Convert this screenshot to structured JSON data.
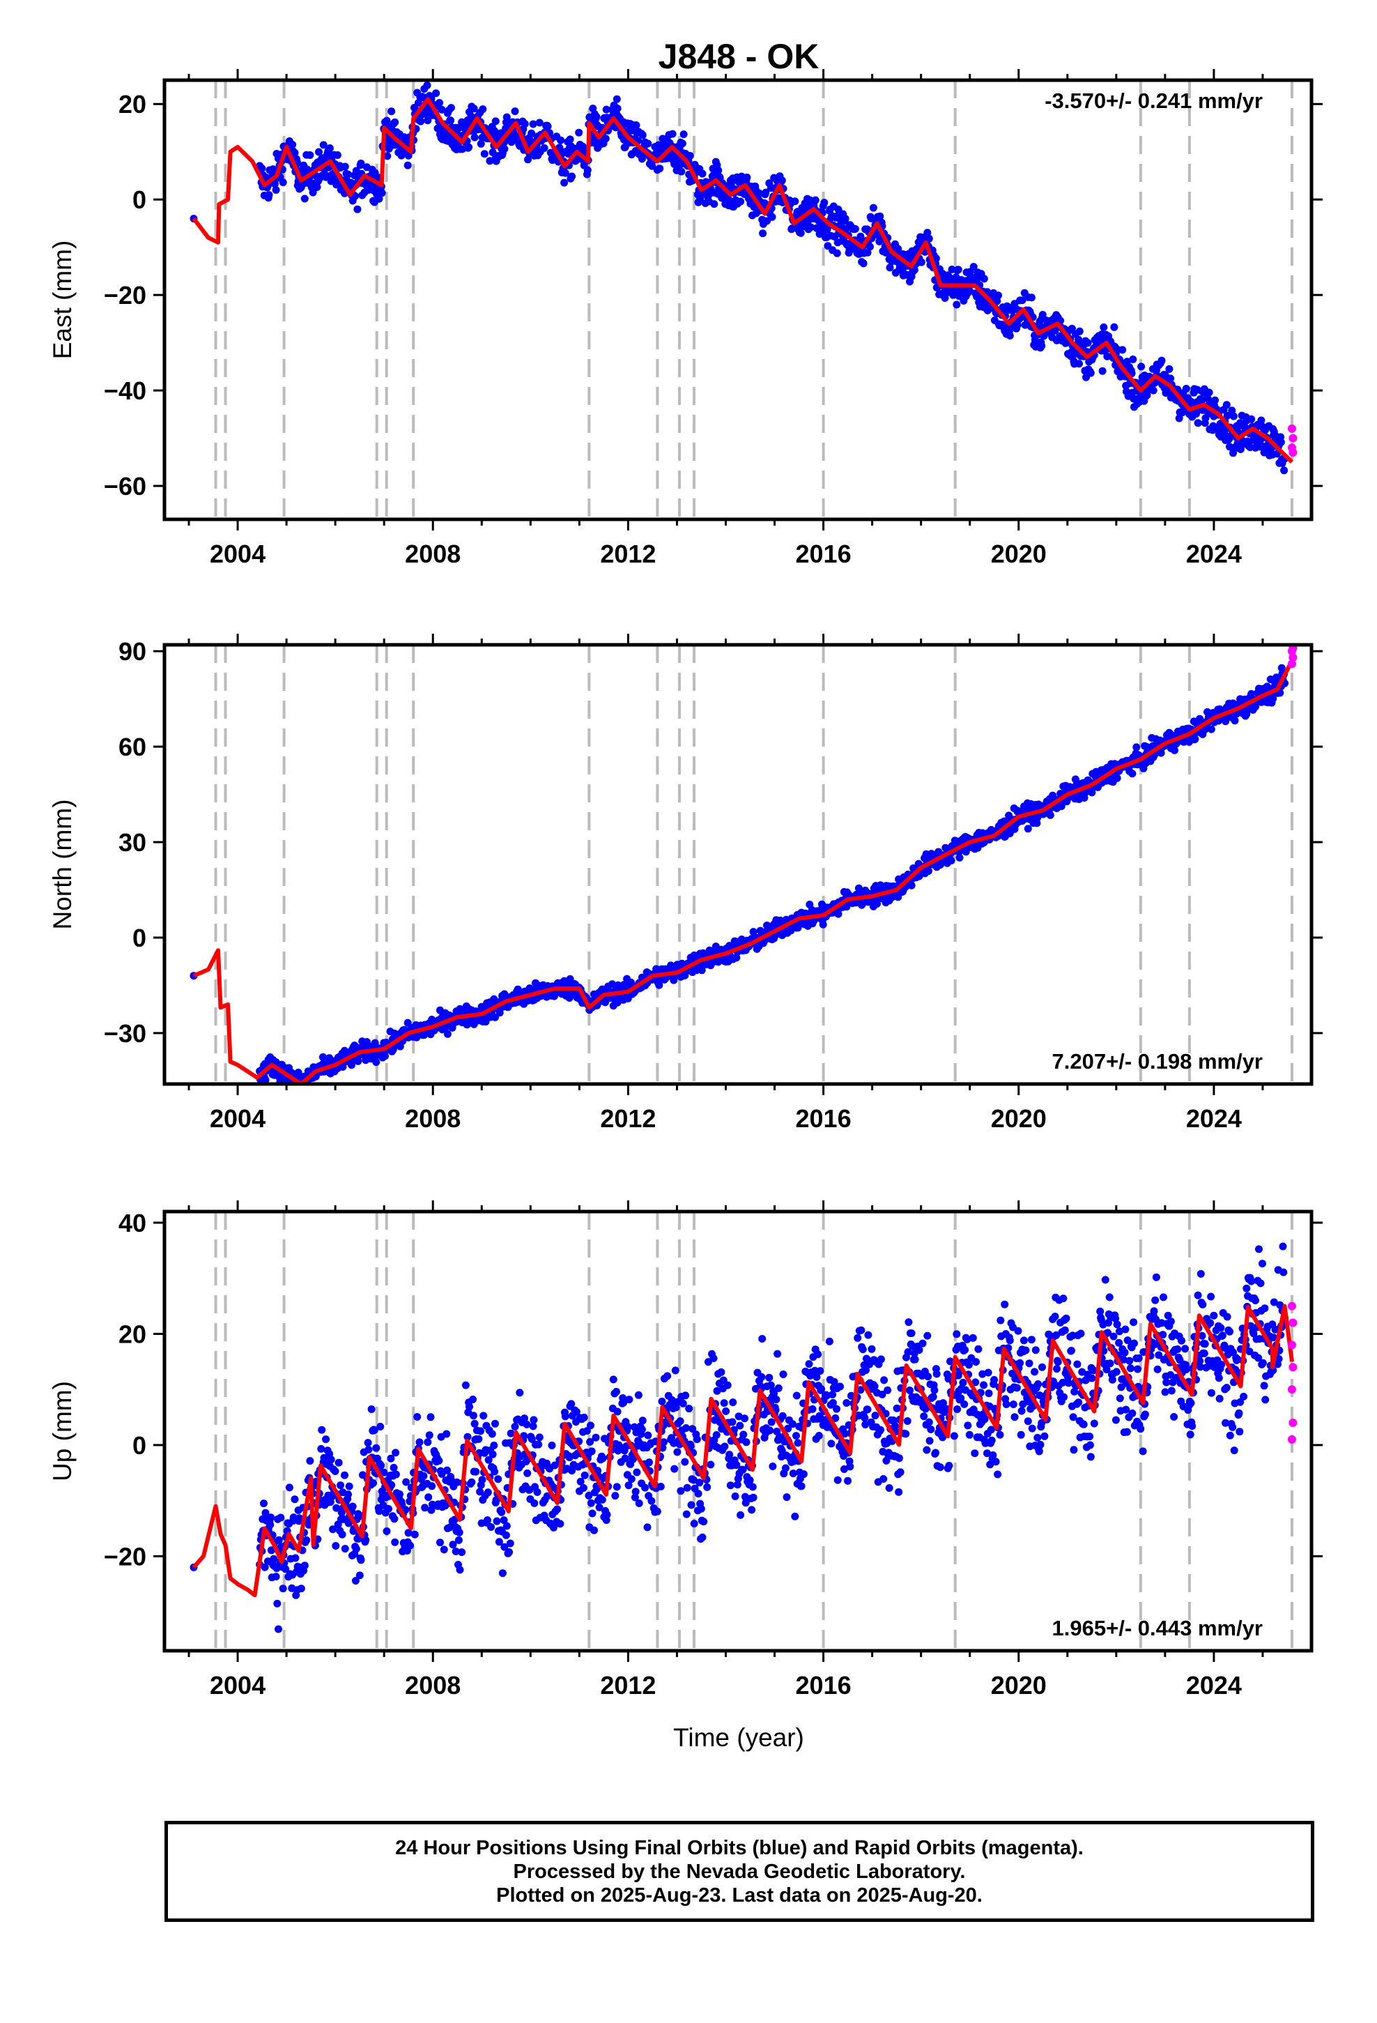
{
  "chart_data": {
    "title": "J848 - OK",
    "type": "scatter",
    "xlabel": "Time (year)",
    "xlim": [
      2002.5,
      2026.0
    ],
    "xticks": [
      "2004",
      "2008",
      "2012",
      "2016",
      "2020",
      "2024"
    ],
    "event_lines": [
      2003.55,
      2003.75,
      2004.95,
      2006.85,
      2007.05,
      2007.6,
      2011.2,
      2012.6,
      2013.05,
      2013.35,
      2016.0,
      2018.7,
      2022.5,
      2023.5,
      2025.6
    ],
    "colors": {
      "final_orbits": "#0000ff",
      "rapid_orbits": "#ff00ff",
      "model": "#ff0000",
      "event_line": "#bbbbbb"
    },
    "panels": [
      {
        "name": "east",
        "ylabel": "East (mm)",
        "ylim": [
          -67,
          25
        ],
        "yticks": [
          "20",
          "0",
          "−20",
          "−40",
          "−60"
        ],
        "rate": "-3.570+/- 0.241 mm/yr",
        "rate_position": "top-right",
        "model_series": {
          "x": [
            2003.1,
            2003.4,
            2003.6,
            2003.62,
            2003.8,
            2003.85,
            2004.0,
            2004.3,
            2004.55,
            2004.8,
            2005.0,
            2005.3,
            2005.6,
            2005.9,
            2006.3,
            2006.6,
            2006.95,
            2007.0,
            2007.2,
            2007.55,
            2007.6,
            2007.9,
            2008.2,
            2008.6,
            2008.9,
            2009.3,
            2009.7,
            2009.95,
            2010.3,
            2010.7,
            2010.95,
            2011.18,
            2011.2,
            2011.4,
            2011.7,
            2012.0,
            2012.35,
            2012.6,
            2012.9,
            2013.2,
            2013.5,
            2013.8,
            2014.1,
            2014.4,
            2014.8,
            2015.1,
            2015.4,
            2015.8,
            2016.1,
            2016.4,
            2016.8,
            2017.1,
            2017.4,
            2017.8,
            2018.1,
            2018.4,
            2018.7,
            2019.1,
            2019.4,
            2019.8,
            2020.1,
            2020.4,
            2020.8,
            2021.1,
            2021.4,
            2021.8,
            2022.1,
            2022.5,
            2022.8,
            2023.1,
            2023.5,
            2023.8,
            2024.1,
            2024.5,
            2024.8,
            2025.1,
            2025.4,
            2025.6
          ],
          "y": [
            -4,
            -8,
            -9,
            -1,
            0,
            10,
            11,
            8,
            3,
            5,
            11,
            4,
            6,
            8,
            1,
            5,
            3,
            15,
            13,
            10,
            17,
            21,
            16,
            12,
            17,
            11,
            16,
            10,
            14,
            7,
            10,
            8,
            16,
            13,
            17,
            13,
            10,
            8,
            11,
            8,
            2,
            4,
            1,
            3,
            -3,
            3,
            -5,
            -2,
            -5,
            -7,
            -10,
            -5,
            -11,
            -14,
            -9,
            -18,
            -18,
            -18,
            -21,
            -26,
            -23,
            -28,
            -26,
            -30,
            -33,
            -30,
            -35,
            -40,
            -37,
            -39,
            -44,
            -43,
            -45,
            -50,
            -48,
            -50,
            -53,
            -55
          ]
        },
        "scatter_band_width": 4,
        "rapid_orbit_values": [
          -48,
          -50,
          -52,
          -53
        ]
      },
      {
        "name": "north",
        "ylabel": "North (mm)",
        "ylim": [
          -46,
          92
        ],
        "yticks": [
          "90",
          "60",
          "30",
          "0",
          "−30"
        ],
        "rate": "7.207+/- 0.198 mm/yr",
        "rate_position": "bottom-right",
        "model_series": {
          "x": [
            2003.1,
            2003.4,
            2003.6,
            2003.65,
            2003.8,
            2003.85,
            2004.0,
            2004.4,
            2004.7,
            2005.0,
            2005.3,
            2005.6,
            2006.0,
            2006.5,
            2007.0,
            2007.5,
            2008.0,
            2008.5,
            2009.0,
            2009.5,
            2010.0,
            2010.5,
            2011.0,
            2011.2,
            2011.5,
            2012.0,
            2012.5,
            2013.0,
            2013.5,
            2014.0,
            2014.5,
            2015.0,
            2015.5,
            2016.0,
            2016.5,
            2017.0,
            2017.5,
            2018.0,
            2018.5,
            2019.0,
            2019.5,
            2020.0,
            2020.5,
            2021.0,
            2021.5,
            2022.0,
            2022.5,
            2023.0,
            2023.5,
            2024.0,
            2024.5,
            2025.0,
            2025.3,
            2025.6
          ],
          "y": [
            -12,
            -10,
            -4,
            -22,
            -21,
            -39,
            -40,
            -44,
            -40,
            -43,
            -46,
            -42,
            -40,
            -36,
            -35,
            -30,
            -28,
            -25,
            -24,
            -20,
            -18,
            -16,
            -16,
            -22,
            -18,
            -17,
            -12,
            -11,
            -7,
            -5,
            -2,
            2,
            6,
            7,
            12,
            13,
            15,
            22,
            26,
            30,
            32,
            38,
            40,
            45,
            48,
            53,
            56,
            61,
            64,
            69,
            72,
            76,
            78,
            87
          ]
        },
        "scatter_band_width": 3,
        "rapid_orbit_values": [
          86,
          88,
          90,
          91
        ]
      },
      {
        "name": "up",
        "ylabel": "Up (mm)",
        "ylim": [
          -37,
          42
        ],
        "yticks": [
          "40",
          "20",
          "0",
          "−20"
        ],
        "rate": "1.965+/- 0.443 mm/yr",
        "rate_position": "bottom-right",
        "model_series": {
          "x": [
            2003.1,
            2003.3,
            2003.55,
            2003.65,
            2003.75,
            2003.85,
            2004.0,
            2004.2,
            2004.35,
            2004.55,
            2004.75,
            2004.9,
            2005.05,
            2005.25,
            2005.5
          ],
          "y": [
            -22,
            -20,
            -11,
            -16,
            -18,
            -24,
            -25,
            -26,
            -27,
            -15,
            -18,
            -21,
            -16,
            -19,
            -6
          ]
        },
        "seasonal_model": {
          "trend_start": -11,
          "trend_slope_per_year": 1.5,
          "amplitude": 7,
          "x_start": 2005.5,
          "x_end": 2025.2
        },
        "model_end": {
          "x": [
            2025.2,
            2025.45,
            2025.6
          ],
          "y": [
            14,
            25,
            15
          ]
        },
        "scatter_band_width": 10,
        "rapid_orbit_values": [
          1,
          4,
          10,
          14,
          18,
          22,
          25
        ]
      }
    ]
  },
  "footer": {
    "line1": "24 Hour Positions Using Final Orbits (blue) and Rapid Orbits (magenta).",
    "line2": "Processed by the Nevada Geodetic Laboratory.",
    "line3": "Plotted on 2025-Aug-23. Last data on 2025-Aug-20."
  }
}
